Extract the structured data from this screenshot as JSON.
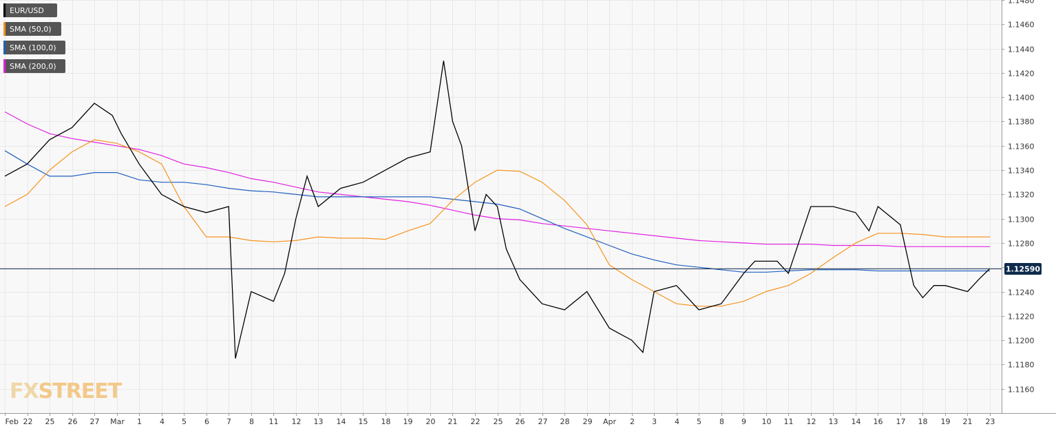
{
  "legend": [
    {
      "label": "EUR/USD",
      "color": "#000000"
    },
    {
      "label": "SMA (50,0)",
      "color": "#f7931e"
    },
    {
      "label": "SMA (100,0)",
      "color": "#1f5fbf"
    },
    {
      "label": "SMA (200,0)",
      "color": "#e020e0"
    }
  ],
  "current_price": {
    "label": "1.12590",
    "value": 1.1259,
    "color": "#0f2b4c"
  },
  "logo": {
    "part1": "FX",
    "part2": "STREET"
  },
  "colors": {
    "grid": "#e8e8e8",
    "plot_bg": "#f8f8f8",
    "axis": "#999999",
    "sma50": "#f7931e",
    "sma100": "#1f5fbf",
    "sma200": "#e020e0",
    "candle": "#000000",
    "logo": "#f0d7a7"
  },
  "chart_data": {
    "type": "line",
    "instrument": "EUR/USD",
    "ylim": [
      1.114,
      1.148
    ],
    "yticks": [
      {
        "label": "1.1160",
        "value": 1.116
      },
      {
        "label": "1.1180",
        "value": 1.118
      },
      {
        "label": "1.1200",
        "value": 1.12
      },
      {
        "label": "1.1220",
        "value": 1.122
      },
      {
        "label": "1.1240",
        "value": 1.124
      },
      {
        "label": "1.1260",
        "value": 1.126
      },
      {
        "label": "1.1280",
        "value": 1.128
      },
      {
        "label": "1.1300",
        "value": 1.13
      },
      {
        "label": "1.1320",
        "value": 1.132
      },
      {
        "label": "1.1340",
        "value": 1.134
      },
      {
        "label": "1.1360",
        "value": 1.136
      },
      {
        "label": "1.1380",
        "value": 1.138
      },
      {
        "label": "1.1400",
        "value": 1.14
      },
      {
        "label": "1.1420",
        "value": 1.142
      },
      {
        "label": "1.1440",
        "value": 1.144
      },
      {
        "label": "1.1460",
        "value": 1.146
      },
      {
        "label": "1.1480",
        "value": 1.148
      }
    ],
    "xticks": [
      "Feb",
      "22",
      "25",
      "26",
      "27",
      "Mar",
      "1",
      "4",
      "5",
      "6",
      "7",
      "8",
      "11",
      "12",
      "13",
      "14",
      "15",
      "18",
      "19",
      "20",
      "21",
      "22",
      "25",
      "26",
      "27",
      "28",
      "29",
      "Apr",
      "2",
      "3",
      "4",
      "5",
      "8",
      "9",
      "10",
      "11",
      "12",
      "13",
      "14",
      "16",
      "17",
      "18",
      "19",
      "21",
      "23"
    ],
    "x_index_range": [
      0,
      44
    ],
    "close_series": {
      "name": "EUR/USD",
      "x": [
        0,
        1,
        2,
        3,
        4,
        4.8,
        5.2,
        6,
        7,
        8,
        9,
        10,
        10.3,
        11,
        12,
        12.5,
        13,
        13.5,
        14,
        15,
        16,
        17,
        18,
        19,
        19.6,
        20,
        20.4,
        21,
        21.5,
        22,
        22.4,
        23,
        24,
        25,
        26,
        27,
        28,
        28.5,
        29,
        30,
        31,
        32,
        33,
        33.5,
        34,
        34.5,
        35,
        36,
        36.5,
        37,
        38,
        38.6,
        39,
        40,
        40.6,
        41,
        41.5,
        42,
        43,
        43.5,
        44
      ],
      "values": [
        1.1335,
        1.1345,
        1.1365,
        1.1375,
        1.1395,
        1.1385,
        1.137,
        1.1345,
        1.132,
        1.131,
        1.1305,
        1.131,
        1.1185,
        1.124,
        1.1232,
        1.1255,
        1.13,
        1.1335,
        1.131,
        1.1325,
        1.133,
        1.134,
        1.135,
        1.1355,
        1.143,
        1.138,
        1.136,
        1.129,
        1.132,
        1.131,
        1.1275,
        1.125,
        1.123,
        1.1225,
        1.124,
        1.121,
        1.12,
        1.119,
        1.124,
        1.1245,
        1.1225,
        1.123,
        1.1255,
        1.1265,
        1.1265,
        1.1265,
        1.1255,
        1.131,
        1.131,
        1.131,
        1.1305,
        1.129,
        1.131,
        1.1295,
        1.1245,
        1.1235,
        1.1245,
        1.1245,
        1.124,
        1.125,
        1.1259
      ]
    },
    "series": [
      {
        "name": "SMA (50,0)",
        "color": "#f7931e",
        "x": [
          0,
          1,
          2,
          3,
          4,
          5,
          6,
          7,
          8,
          9,
          10,
          11,
          12,
          13,
          14,
          15,
          16,
          17,
          18,
          19,
          20,
          21,
          22,
          23,
          24,
          25,
          26,
          27,
          28,
          29,
          30,
          31,
          32,
          33,
          34,
          35,
          36,
          37,
          38,
          39,
          40,
          41,
          42,
          43,
          44
        ],
        "values": [
          1.131,
          1.132,
          1.134,
          1.1355,
          1.1365,
          1.1362,
          1.1355,
          1.1345,
          1.131,
          1.1285,
          1.1285,
          1.1282,
          1.1281,
          1.1282,
          1.1285,
          1.1284,
          1.1284,
          1.1283,
          1.129,
          1.1296,
          1.1315,
          1.133,
          1.134,
          1.1339,
          1.133,
          1.1315,
          1.1295,
          1.1262,
          1.125,
          1.124,
          1.123,
          1.1228,
          1.1228,
          1.1232,
          1.124,
          1.1245,
          1.1255,
          1.1268,
          1.128,
          1.1288,
          1.1288,
          1.1287,
          1.1285,
          1.1285,
          1.1285
        ]
      },
      {
        "name": "SMA (100,0)",
        "color": "#1f5fbf",
        "x": [
          0,
          1,
          2,
          3,
          4,
          5,
          6,
          7,
          8,
          9,
          10,
          11,
          12,
          13,
          14,
          15,
          16,
          17,
          18,
          19,
          20,
          21,
          22,
          23,
          24,
          25,
          26,
          27,
          28,
          29,
          30,
          31,
          32,
          33,
          34,
          35,
          36,
          37,
          38,
          39,
          40,
          41,
          42,
          43,
          44
        ],
        "values": [
          1.1356,
          1.1345,
          1.1335,
          1.1335,
          1.1338,
          1.1338,
          1.1332,
          1.133,
          1.133,
          1.1328,
          1.1325,
          1.1323,
          1.1322,
          1.132,
          1.1318,
          1.1318,
          1.1318,
          1.1318,
          1.1318,
          1.1318,
          1.1316,
          1.1314,
          1.1312,
          1.1308,
          1.13,
          1.1292,
          1.1285,
          1.1278,
          1.1271,
          1.1266,
          1.1262,
          1.126,
          1.1258,
          1.1256,
          1.1256,
          1.1257,
          1.1258,
          1.1258,
          1.1258,
          1.1257,
          1.1257,
          1.1257,
          1.1257,
          1.1257,
          1.1257
        ]
      },
      {
        "name": "SMA (200,0)",
        "color": "#e020e0",
        "x": [
          0,
          1,
          2,
          3,
          4,
          5,
          6,
          7,
          8,
          9,
          10,
          11,
          12,
          13,
          14,
          15,
          16,
          17,
          18,
          19,
          20,
          21,
          22,
          23,
          24,
          25,
          26,
          27,
          28,
          29,
          30,
          31,
          32,
          33,
          34,
          35,
          36,
          37,
          38,
          39,
          40,
          41,
          42,
          43,
          44
        ],
        "values": [
          1.1388,
          1.1378,
          1.137,
          1.1366,
          1.1363,
          1.136,
          1.1357,
          1.1352,
          1.1345,
          1.1342,
          1.1338,
          1.1333,
          1.133,
          1.1326,
          1.1322,
          1.132,
          1.1318,
          1.1316,
          1.1314,
          1.1311,
          1.1307,
          1.1303,
          1.13,
          1.1299,
          1.1296,
          1.1294,
          1.1292,
          1.129,
          1.1288,
          1.1286,
          1.1284,
          1.1282,
          1.1281,
          1.128,
          1.1279,
          1.1279,
          1.1279,
          1.1278,
          1.1278,
          1.1278,
          1.1277,
          1.1277,
          1.1277,
          1.1277,
          1.1277
        ]
      }
    ]
  }
}
